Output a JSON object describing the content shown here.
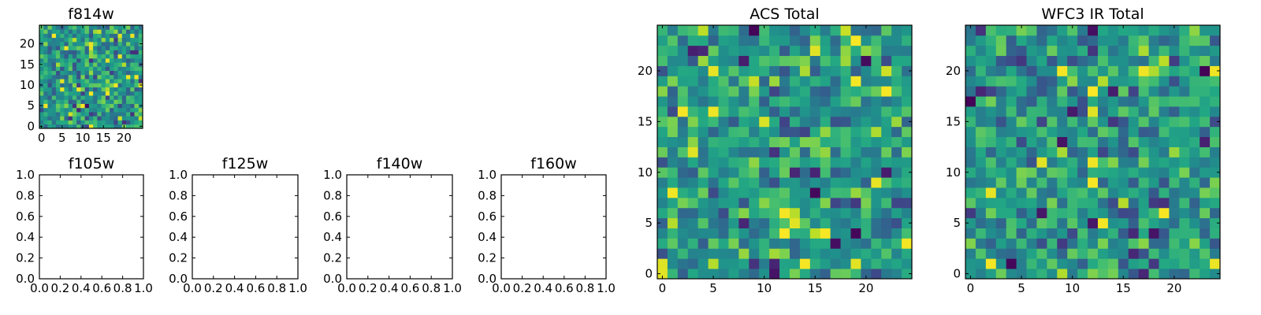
{
  "chart_data": [
    {
      "type": "heatmap",
      "title": "f814w",
      "colormap": "viridis",
      "xlim": [
        -0.5,
        24.5
      ],
      "ylim": [
        -0.5,
        24.5
      ],
      "xticks": [
        0,
        5,
        10,
        15,
        20
      ],
      "yticks": [
        0,
        5,
        10,
        15,
        20
      ],
      "grid_size": [
        25,
        25
      ],
      "values_note": "random noise image"
    },
    {
      "type": "empty",
      "title": "f105w",
      "xlim": [
        0,
        1
      ],
      "ylim": [
        0,
        1
      ],
      "xticks": [
        "0.0",
        "0.2",
        "0.4",
        "0.6",
        "0.8",
        "1.0"
      ],
      "yticks": [
        "0.0",
        "0.2",
        "0.4",
        "0.6",
        "0.8",
        "1.0"
      ]
    },
    {
      "type": "empty",
      "title": "f125w",
      "xlim": [
        0,
        1
      ],
      "ylim": [
        0,
        1
      ],
      "xticks": [
        "0.0",
        "0.2",
        "0.4",
        "0.6",
        "0.8",
        "1.0"
      ],
      "yticks": [
        "0.0",
        "0.2",
        "0.4",
        "0.6",
        "0.8",
        "1.0"
      ]
    },
    {
      "type": "empty",
      "title": "f140w",
      "xlim": [
        0,
        1
      ],
      "ylim": [
        0,
        1
      ],
      "xticks": [
        "0.0",
        "0.2",
        "0.4",
        "0.6",
        "0.8",
        "1.0"
      ],
      "yticks": [
        "0.0",
        "0.2",
        "0.4",
        "0.6",
        "0.8",
        "1.0"
      ]
    },
    {
      "type": "empty",
      "title": "f160w",
      "xlim": [
        0,
        1
      ],
      "ylim": [
        0,
        1
      ],
      "xticks": [
        "0.0",
        "0.2",
        "0.4",
        "0.6",
        "0.8",
        "1.0"
      ],
      "yticks": [
        "0.0",
        "0.2",
        "0.4",
        "0.6",
        "0.8",
        "1.0"
      ]
    },
    {
      "type": "heatmap",
      "title": "ACS Total",
      "colormap": "viridis",
      "xlim": [
        -0.5,
        24.5
      ],
      "ylim": [
        -0.5,
        24.5
      ],
      "xticks": [
        0,
        5,
        10,
        15,
        20
      ],
      "yticks": [
        0,
        5,
        10,
        15,
        20
      ],
      "grid_size": [
        25,
        25
      ],
      "values_note": "random noise image"
    },
    {
      "type": "heatmap",
      "title": "WFC3 IR Total",
      "colormap": "viridis",
      "xlim": [
        -0.5,
        24.5
      ],
      "ylim": [
        -0.5,
        24.5
      ],
      "xticks": [
        0,
        5,
        10,
        15,
        20
      ],
      "yticks": [
        0,
        5,
        10,
        15,
        20
      ],
      "grid_size": [
        25,
        25
      ],
      "values_note": "random noise image"
    }
  ]
}
